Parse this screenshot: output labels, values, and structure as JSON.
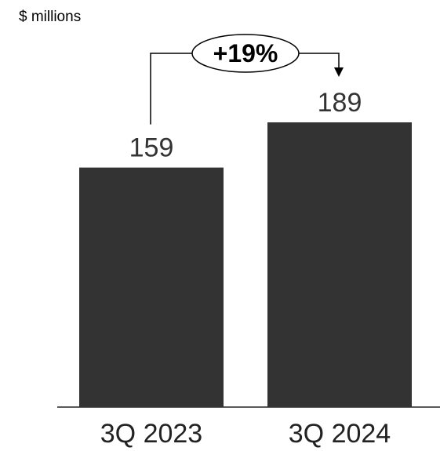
{
  "chart_data": {
    "type": "bar",
    "unit_label": "$ millions",
    "categories": [
      "3Q 2023",
      "3Q 2024"
    ],
    "values": [
      159,
      189
    ],
    "value_labels": [
      "159",
      "189"
    ],
    "change_annotation": "+19%",
    "bar_color": "#333333",
    "ylim": [
      0,
      200
    ],
    "grid": false,
    "legend": "none"
  }
}
